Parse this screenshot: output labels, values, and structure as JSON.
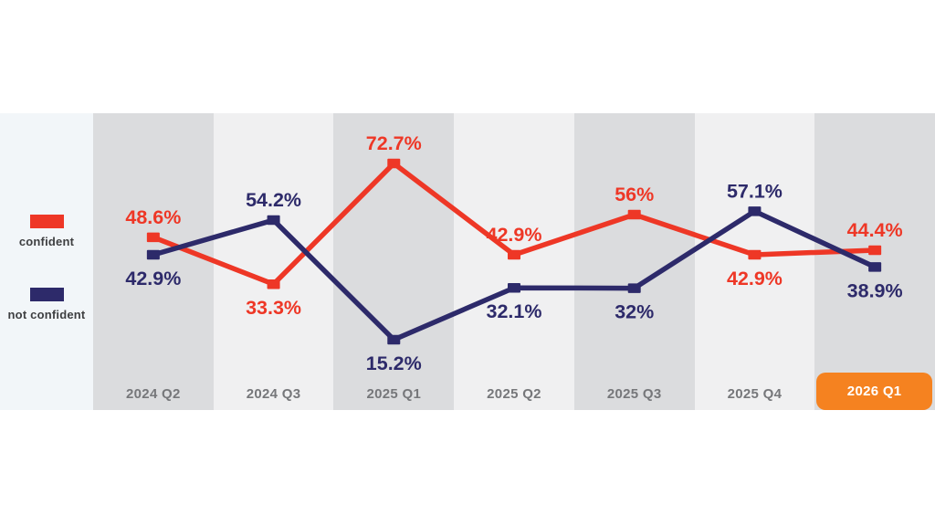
{
  "page": {
    "background": "#ffffff"
  },
  "legend": {
    "position": "left",
    "background": "#f2f6f9",
    "items": [
      {
        "label": "confident",
        "color": "#ee3726"
      },
      {
        "label": "not confident",
        "color": "#2d2a6a"
      }
    ]
  },
  "chart_data": {
    "type": "line",
    "title": "",
    "xlabel": "",
    "ylabel": "",
    "categories": [
      "2024 Q2",
      "2024 Q3",
      "2025 Q1",
      "2025 Q2",
      "2025 Q3",
      "2025 Q4",
      "2026 Q1"
    ],
    "series": [
      {
        "name": "confident",
        "color": "#ee3726",
        "values": [
          48.6,
          33.3,
          72.7,
          42.9,
          56,
          42.9,
          44.4
        ],
        "labels": [
          "48.6%",
          "33.3%",
          "72.7%",
          "42.9%",
          "56%",
          "42.9%",
          "44.4%"
        ]
      },
      {
        "name": "not confident",
        "color": "#2d2a6a",
        "values": [
          42.9,
          54.2,
          15.2,
          32.1,
          32,
          57.1,
          38.9
        ],
        "labels": [
          "42.9%",
          "54.2%",
          "15.2%",
          "32.1%",
          "32%",
          "57.1%",
          "38.9%"
        ]
      }
    ],
    "highlighted_category": "2026 Q1",
    "highlight_color": "#f58220",
    "band_colors": [
      "#dbdcde",
      "#f0f0f1"
    ],
    "axis_text_color": "#76777a",
    "ylim": [
      0,
      100
    ],
    "grid": false,
    "legend_position": "left"
  }
}
